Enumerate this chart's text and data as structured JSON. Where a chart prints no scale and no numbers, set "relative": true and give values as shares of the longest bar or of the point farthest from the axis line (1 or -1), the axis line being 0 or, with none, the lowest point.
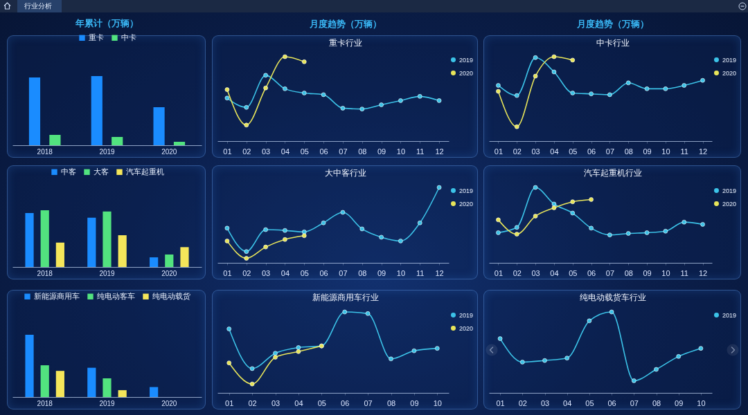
{
  "chart_data": [
    {
      "type": "bar",
      "title": "年累计（万辆）",
      "annotations": [
        "行业分析"
      ],
      "relative": true,
      "legend": "top",
      "categories": [
        "2018",
        "2019",
        "2020"
      ],
      "series": [
        {
          "name": "重卡",
          "color": "#1a8cff",
          "values": [
            0.98,
            1,
            0.55
          ]
        },
        {
          "name": "中卡",
          "color": "#52e37f",
          "values": [
            0.15,
            0.12,
            0.05
          ]
        }
      ]
    },
    {
      "type": "line",
      "title": "月度趋势（万辆）",
      "subtitle": "重卡行业",
      "relative": true,
      "legend": "right",
      "marker": "circle",
      "categories": [
        "01",
        "02",
        "03",
        "04",
        "05",
        "06",
        "07",
        "08",
        "09",
        "10",
        "11",
        "12"
      ],
      "series": [
        {
          "name": "2019",
          "color": "#3cc3e8",
          "values": [
            0.51,
            0.4,
            0.78,
            0.62,
            0.57,
            0.55,
            0.39,
            0.38,
            0.43,
            0.48,
            0.53,
            0.48
          ]
        },
        {
          "name": "2020",
          "color": "#e8e55a",
          "values": [
            0.61,
            0.19,
            0.63,
            1,
            0.94,
            null,
            null,
            null,
            null,
            null,
            null,
            null
          ]
        }
      ]
    },
    {
      "type": "line",
      "title": "月度趋势（万辆）",
      "subtitle": "中卡行业",
      "relative": true,
      "legend": "right",
      "marker": "circle",
      "categories": [
        "01",
        "02",
        "03",
        "04",
        "05",
        "06",
        "07",
        "08",
        "09",
        "10",
        "11",
        "12"
      ],
      "series": [
        {
          "name": "2019",
          "color": "#3cc3e8",
          "values": [
            0.66,
            0.54,
            0.99,
            0.82,
            0.57,
            0.56,
            0.55,
            0.69,
            0.62,
            0.62,
            0.66,
            0.72
          ]
        },
        {
          "name": "2020",
          "color": "#e8e55a",
          "values": [
            0.59,
            0.17,
            0.77,
            1,
            0.96,
            null,
            null,
            null,
            null,
            null,
            null,
            null
          ]
        }
      ]
    },
    {
      "type": "bar",
      "relative": true,
      "legend": "top",
      "categories": [
        "2018",
        "2019",
        "2020"
      ],
      "series": [
        {
          "name": "中客",
          "color": "#1a8cff",
          "values": [
            0.95,
            0.87,
            0.17
          ]
        },
        {
          "name": "大客",
          "color": "#52e37f",
          "values": [
            1,
            0.98,
            0.22
          ]
        },
        {
          "name": "汽车起重机",
          "color": "#f5e65a",
          "values": [
            0.43,
            0.56,
            0.35
          ]
        }
      ]
    },
    {
      "type": "line",
      "title": "大中客行业",
      "relative": true,
      "legend": "right",
      "marker": "circle",
      "categories": [
        "01",
        "02",
        "03",
        "04",
        "05",
        "06",
        "07",
        "08",
        "09",
        "10",
        "11",
        "12"
      ],
      "series": [
        {
          "name": "2019",
          "color": "#3cc3e8",
          "values": [
            0.46,
            0.15,
            0.44,
            0.43,
            0.41,
            0.53,
            0.67,
            0.45,
            0.34,
            0.29,
            0.53,
            1
          ]
        },
        {
          "name": "2020",
          "color": "#e8e55a",
          "values": [
            0.29,
            0.06,
            0.21,
            0.31,
            0.36,
            null,
            null,
            null,
            null,
            null,
            null,
            null
          ]
        }
      ]
    },
    {
      "type": "line",
      "title": "汽车起重机行业",
      "relative": true,
      "legend": "right",
      "marker": "circle",
      "categories": [
        "01",
        "02",
        "03",
        "04",
        "05",
        "06",
        "07",
        "08",
        "09",
        "10",
        "11",
        "12"
      ],
      "series": [
        {
          "name": "2019",
          "color": "#3cc3e8",
          "values": [
            0.4,
            0.47,
            1,
            0.78,
            0.66,
            0.46,
            0.37,
            0.39,
            0.4,
            0.42,
            0.54,
            0.51
          ]
        },
        {
          "name": "2020",
          "color": "#e8e55a",
          "values": [
            0.57,
            0.38,
            0.62,
            0.73,
            0.81,
            0.84,
            null,
            null,
            null,
            null,
            null,
            null
          ]
        }
      ]
    },
    {
      "type": "bar",
      "relative": true,
      "legend": "top",
      "categories": [
        "2018",
        "2019",
        "2020"
      ],
      "series": [
        {
          "name": "新能源商用车",
          "color": "#1a8cff",
          "values": [
            1,
            0.47,
            0.16
          ]
        },
        {
          "name": "纯电动客车",
          "color": "#52e37f",
          "values": [
            0.51,
            0.3,
            null
          ]
        },
        {
          "name": "纯电动载货",
          "color": "#f5e65a",
          "values": [
            0.42,
            0.11,
            null
          ]
        }
      ]
    },
    {
      "type": "line",
      "title": "新能源商用车行业",
      "relative": true,
      "legend": "right",
      "marker": "circle",
      "categories": [
        "01",
        "02",
        "03",
        "04",
        "05",
        "06",
        "07",
        "08",
        "09",
        "10"
      ],
      "series": [
        {
          "name": "2019",
          "color": "#3cc3e8",
          "values": [
            0.79,
            0.3,
            0.49,
            0.56,
            0.58,
            1,
            0.98,
            0.42,
            0.52,
            0.55
          ]
        },
        {
          "name": "2020",
          "color": "#e8e55a",
          "values": [
            0.37,
            0.11,
            0.44,
            0.51,
            0.58,
            null,
            null,
            null,
            null,
            null
          ]
        }
      ]
    },
    {
      "type": "line",
      "title": "纯电动载货车行业",
      "relative": true,
      "legend": "right",
      "marker": "circle",
      "categories": [
        "01",
        "02",
        "03",
        "04",
        "05",
        "06",
        "07",
        "08",
        "09",
        "10"
      ],
      "series": [
        {
          "name": "2019",
          "color": "#3cc3e8",
          "values": [
            0.67,
            0.38,
            0.4,
            0.43,
            0.89,
            1,
            0.15,
            0.29,
            0.45,
            0.55
          ]
        }
      ]
    }
  ]
}
